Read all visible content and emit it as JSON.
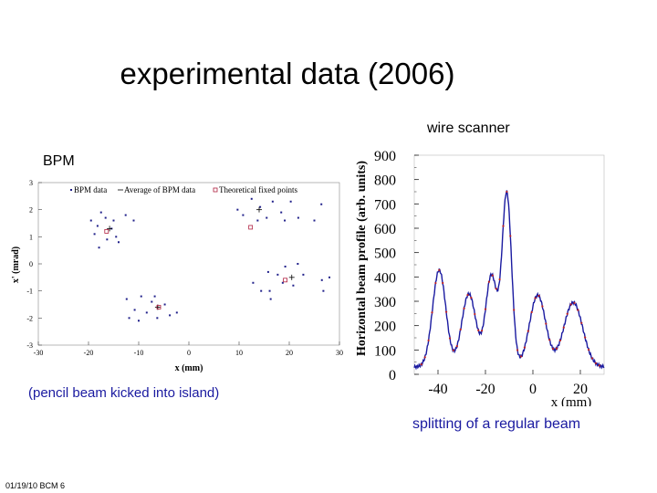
{
  "slide": {
    "title": "experimental data (2006)",
    "wire_scanner_label": "wire scanner",
    "bpm_label": "BPM",
    "caption_left": "(pencil beam kicked into island)",
    "caption_right": "splitting of a regular beam",
    "footer": "01/19/10 BCM 6"
  },
  "colors": {
    "caption": "#1a1aa0",
    "bpm_points": "#20208a",
    "theory": "#b02040",
    "profile_line": "#1a1aa0",
    "profile_points": "#c02020"
  },
  "chart_data": [
    {
      "type": "scatter",
      "title": "",
      "xlabel": "x (mm)",
      "ylabel": "x' (mrad)",
      "xlim": [
        -30,
        30
      ],
      "ylim": [
        -3,
        3
      ],
      "xticks": [
        "-30",
        "-20",
        "-10",
        "0",
        "10",
        "20",
        "30"
      ],
      "yticks": [
        "-3",
        "-2",
        "-1",
        "0",
        "1",
        "2",
        "3"
      ],
      "legend": [
        "BPM data",
        "Average of BPM data",
        "Theoretical fixed points"
      ],
      "legend_placement": "top",
      "series": [
        {
          "name": "BPM data",
          "points": [
            [
              -19.5,
              1.6
            ],
            [
              -18.8,
              1.1
            ],
            [
              -17.5,
              1.9
            ],
            [
              -16.3,
              0.9
            ],
            [
              -15.4,
              1.3
            ],
            [
              -14.5,
              1.0
            ],
            [
              -17.9,
              0.6
            ],
            [
              -15.0,
              1.6
            ],
            [
              -12.6,
              1.8
            ],
            [
              -11.0,
              1.6
            ],
            [
              -16.6,
              1.7
            ],
            [
              -14.0,
              0.8
            ],
            [
              -18.2,
              1.4
            ],
            [
              9.7,
              2.0
            ],
            [
              10.8,
              1.8
            ],
            [
              12.5,
              2.4
            ],
            [
              13.7,
              1.6
            ],
            [
              15.5,
              1.7
            ],
            [
              16.7,
              2.3
            ],
            [
              18.4,
              1.9
            ],
            [
              20.3,
              2.3
            ],
            [
              21.8,
              1.7
            ],
            [
              25.0,
              1.6
            ],
            [
              26.4,
              2.2
            ],
            [
              14.2,
              2.1
            ],
            [
              19.1,
              1.6
            ],
            [
              12.8,
              -0.7
            ],
            [
              14.4,
              -1.0
            ],
            [
              15.8,
              -0.3
            ],
            [
              16.3,
              -1.3
            ],
            [
              17.7,
              -0.4
            ],
            [
              18.7,
              -0.7
            ],
            [
              19.2,
              -0.1
            ],
            [
              20.8,
              -0.8
            ],
            [
              21.7,
              0.0
            ],
            [
              22.8,
              -0.4
            ],
            [
              26.5,
              -0.6
            ],
            [
              26.8,
              -1.0
            ],
            [
              28.0,
              -0.5
            ],
            [
              16.1,
              -1.0
            ],
            [
              -12.4,
              -1.3
            ],
            [
              -11.9,
              -2.0
            ],
            [
              -10.8,
              -1.7
            ],
            [
              -9.5,
              -1.2
            ],
            [
              -8.4,
              -1.8
            ],
            [
              -7.4,
              -1.4
            ],
            [
              -6.3,
              -2.0
            ],
            [
              -4.8,
              -1.5
            ],
            [
              -3.8,
              -1.9
            ],
            [
              -2.4,
              -1.8
            ],
            [
              -10.0,
              -2.1
            ],
            [
              -6.8,
              -1.2
            ]
          ]
        },
        {
          "name": "Average of BPM data",
          "points": [
            [
              -15.8,
              1.3
            ],
            [
              14.0,
              2.0
            ],
            [
              20.5,
              -0.5
            ],
            [
              -6.2,
              -1.6
            ]
          ]
        },
        {
          "name": "Theoretical fixed points",
          "points": [
            [
              -16.4,
              1.2
            ],
            [
              12.3,
              1.35
            ],
            [
              19.2,
              -0.6
            ],
            [
              -6.0,
              -1.6
            ]
          ]
        }
      ]
    },
    {
      "type": "line",
      "title": "",
      "xlabel": "x (mm)",
      "ylabel": "Horizontal beam profile (arb. units)",
      "xlim": [
        -50,
        30
      ],
      "ylim": [
        0,
        900
      ],
      "xticks": [
        "-40",
        "-20",
        "0",
        "20"
      ],
      "yticks": [
        "0",
        "100",
        "200",
        "300",
        "400",
        "500",
        "600",
        "700",
        "800",
        "900"
      ],
      "peaks": [
        {
          "x": -39.5,
          "y": 428
        },
        {
          "x": -27.0,
          "y": 330
        },
        {
          "x": -17.5,
          "y": 405
        },
        {
          "x": -11.0,
          "y": 740
        },
        {
          "x": 2.0,
          "y": 325
        },
        {
          "x": 17.0,
          "y": 295
        }
      ],
      "baseline": 30
    }
  ]
}
